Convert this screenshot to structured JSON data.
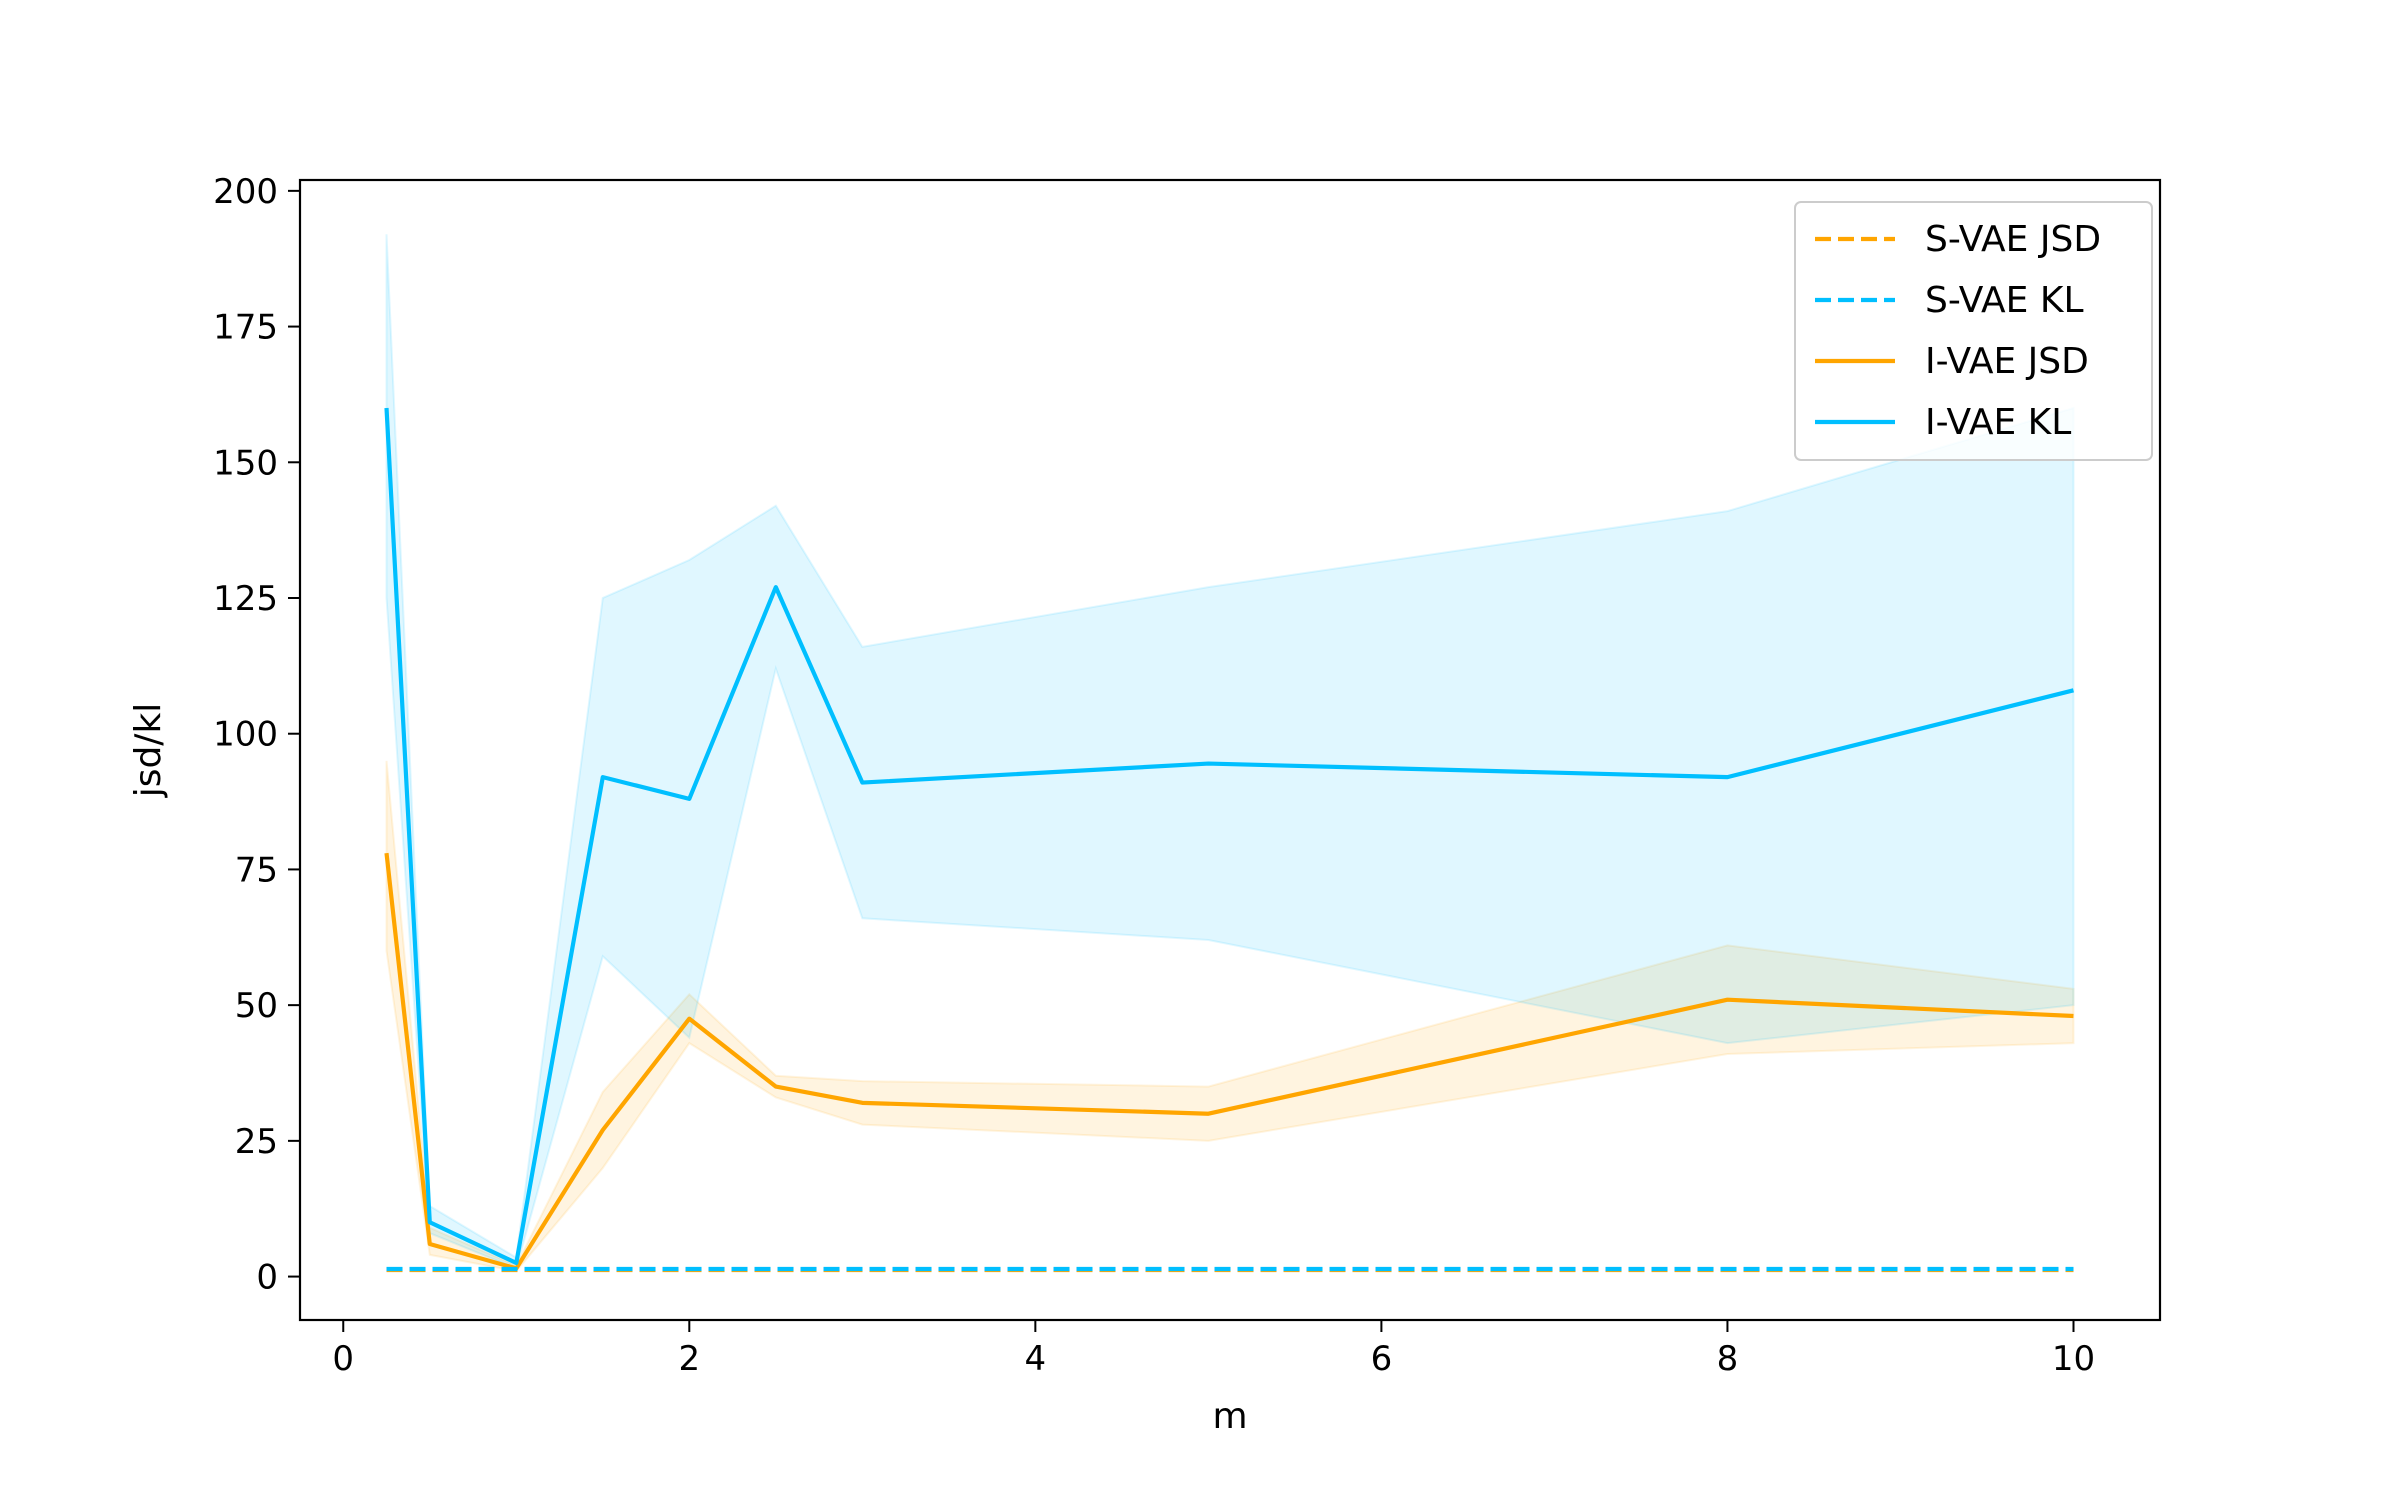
{
  "chart_data": {
    "type": "line",
    "title": "",
    "xlabel": "m",
    "ylabel": "jsd/kl",
    "xlim": [
      -0.25,
      10.5
    ],
    "ylim": [
      -8,
      202
    ],
    "xticks": [
      0,
      2,
      4,
      6,
      8,
      10
    ],
    "yticks": [
      0,
      25,
      50,
      75,
      100,
      125,
      150,
      175,
      200
    ],
    "grid": false,
    "legend_position": "top-right",
    "x": [
      0.25,
      0.5,
      1,
      1.5,
      2,
      2.5,
      3,
      5,
      8,
      10
    ],
    "series": [
      {
        "name": "S-VAE JSD",
        "style": "dashed",
        "color": "#FFA500",
        "values": [
          1.2,
          1.2,
          1.2,
          1.2,
          1.2,
          1.2,
          1.2,
          1.2,
          1.2,
          1.2
        ]
      },
      {
        "name": "S-VAE KL",
        "style": "dashed",
        "color": "#00BFFF",
        "values": [
          1.4,
          1.4,
          1.4,
          1.4,
          1.4,
          1.4,
          1.4,
          1.4,
          1.4,
          1.4
        ]
      },
      {
        "name": "I-VAE JSD",
        "style": "solid",
        "color": "#FFA500",
        "values": [
          78,
          6,
          1.5,
          27,
          47.5,
          35,
          32,
          30,
          51,
          48
        ],
        "band_lower": [
          60,
          4,
          1,
          20,
          43,
          33,
          28,
          25,
          41,
          43
        ],
        "band_upper": [
          95,
          9,
          2,
          34,
          52,
          37,
          36,
          35,
          61,
          53
        ]
      },
      {
        "name": "I-VAE KL",
        "style": "solid",
        "color": "#00BFFF",
        "values": [
          160,
          10,
          2.5,
          92,
          88,
          127,
          91,
          94.5,
          92,
          108
        ],
        "band_lower": [
          125,
          8,
          1.5,
          59,
          44,
          112,
          66,
          62,
          43,
          50
        ],
        "band_upper": [
          192,
          13,
          3.5,
          125,
          132,
          142,
          116,
          127,
          141,
          160
        ]
      }
    ]
  }
}
